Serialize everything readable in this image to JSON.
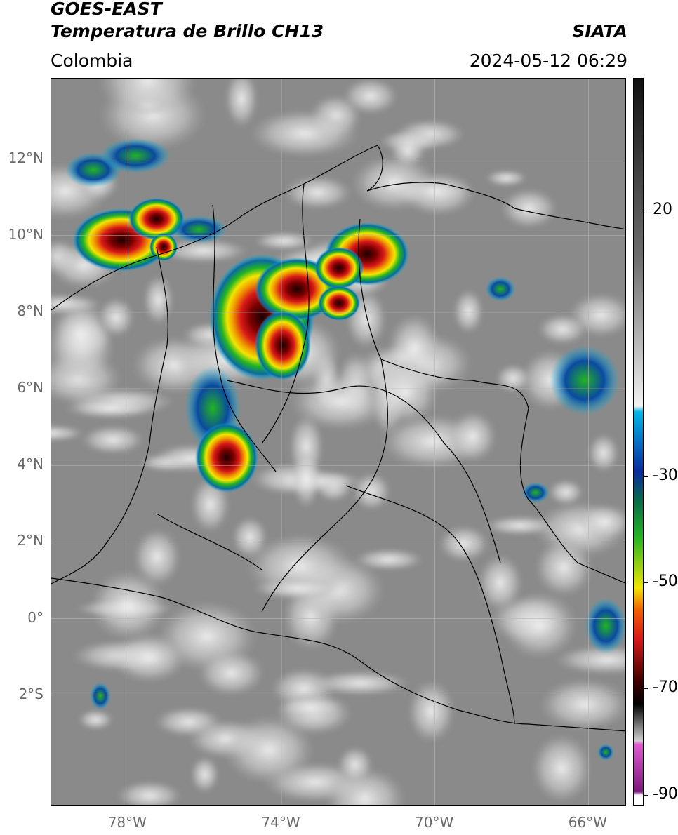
{
  "header": {
    "title_line1": "GOES-EAST",
    "title_line2": "Temperatura de Brillo CH13",
    "region": "Colombia",
    "source": "SIATA",
    "datetime": "2024-05-12 06:29"
  },
  "map": {
    "lat_labels": [
      "12°N",
      "10°N",
      "8°N",
      "6°N",
      "4°N",
      "2°N",
      "0°",
      "2°S"
    ],
    "lon_labels": [
      "78°W",
      "74°W",
      "70°W",
      "66°W"
    ],
    "lat_range": [
      -4.9,
      14.1
    ],
    "lon_range": [
      -80,
      -65
    ],
    "background_color": "#8a8a8a",
    "border_color": "#000000"
  },
  "colorbar": {
    "tick_labels": [
      "20",
      "-30",
      "-50",
      "-70",
      "-90"
    ],
    "tick_values": [
      20,
      -30,
      -50,
      -70,
      -90
    ],
    "range": [
      -92,
      45
    ],
    "colors": {
      "gray_top": "#111111",
      "gray_bottom": "#f2f2f2",
      "cyan": "#00b8e6",
      "dark_blue": "#0a2aa0",
      "green": "#22b422",
      "yellow": "#f2e600",
      "red": "#d81818",
      "dark_red": "#5a0000",
      "pink": "#e05ad0",
      "purple": "#8a1a8a"
    }
  }
}
